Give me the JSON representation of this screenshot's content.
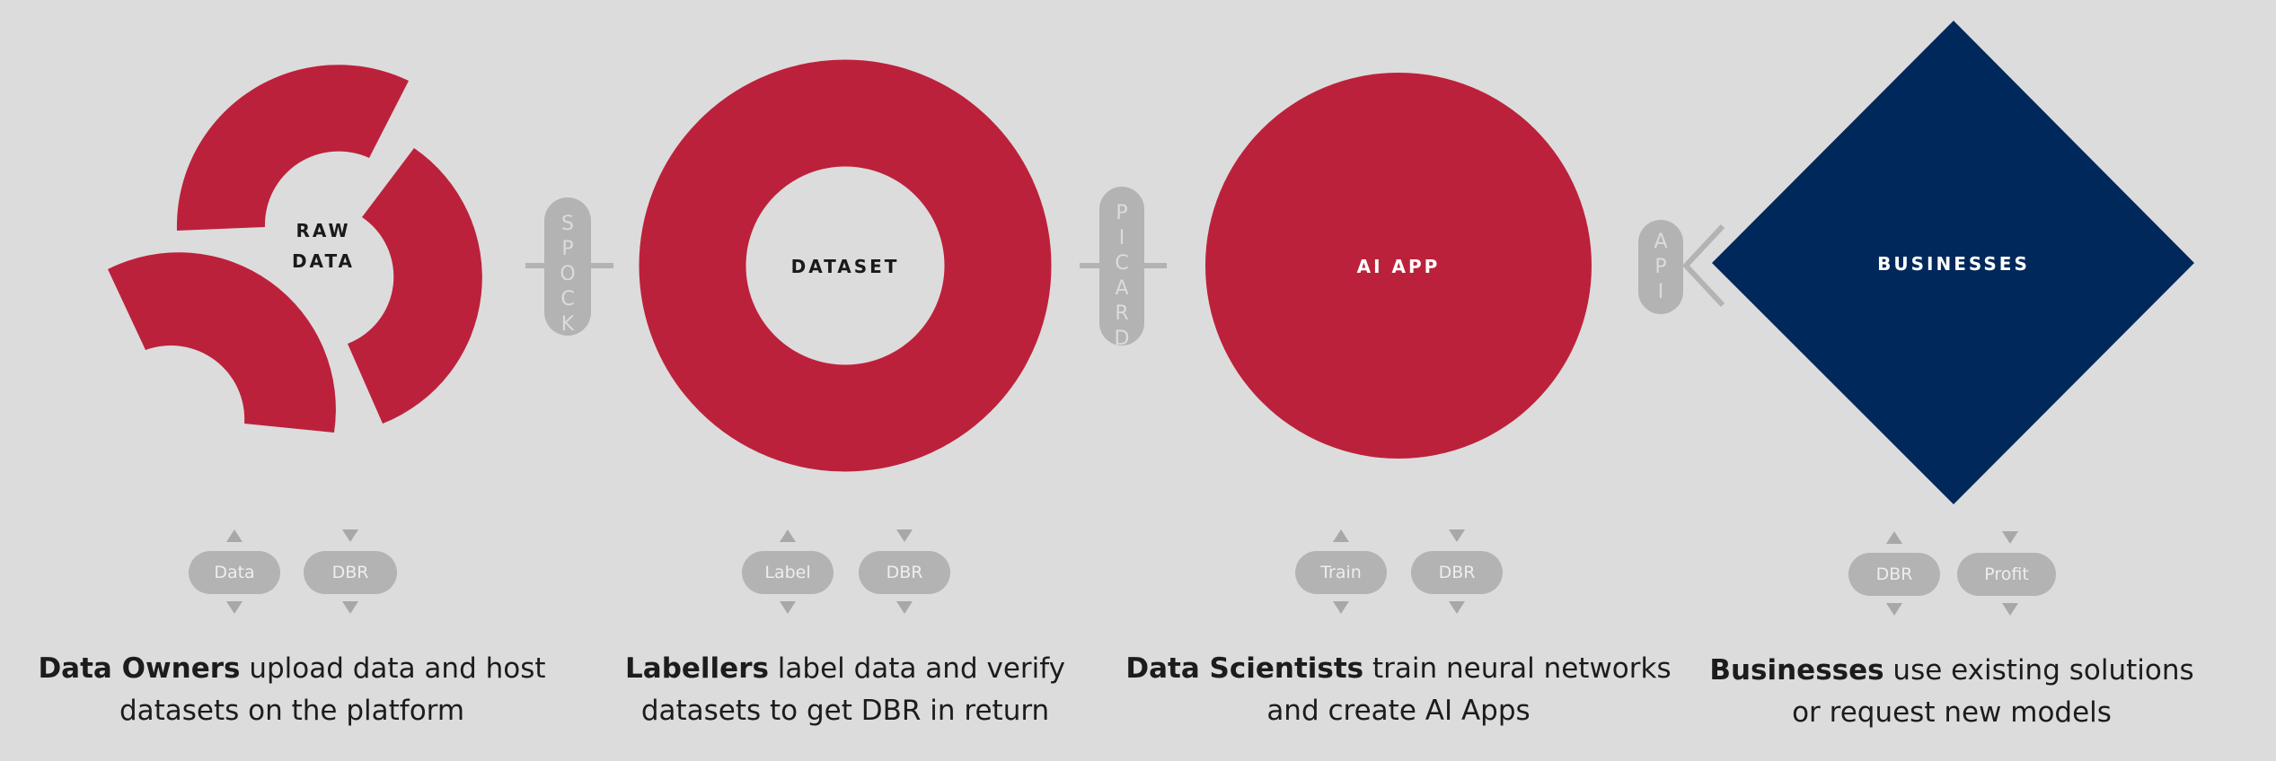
{
  "colors": {
    "background": "#dcdcdc",
    "red": "#bc213b",
    "navy": "#00285a",
    "grey": "#b3b3b3"
  },
  "nodes": {
    "raw_data": {
      "line1": "RAW",
      "line2": "DATA"
    },
    "dataset": {
      "label": "DATASET"
    },
    "ai_app": {
      "label": "AI APP"
    },
    "businesses": {
      "label": "BUSINESSES"
    }
  },
  "connectors": {
    "spock": [
      "S",
      "P",
      "O",
      "C",
      "K"
    ],
    "picard": [
      "P",
      "I",
      "C",
      "A",
      "R",
      "D"
    ],
    "api": [
      "A",
      "P",
      "I"
    ]
  },
  "tokens": {
    "data_owners": [
      "Data",
      "DBR"
    ],
    "labellers": [
      "Label",
      "DBR"
    ],
    "data_scientists": [
      "Train",
      "DBR"
    ],
    "businesses": [
      "DBR",
      "Profit"
    ]
  },
  "descriptions": {
    "data_owners": {
      "role": "Data Owners",
      "rest1": " upload data and host",
      "line2": "datasets on the platform"
    },
    "labellers": {
      "role": "Labellers",
      "rest1": " label data and verify",
      "line2": "datasets to get DBR in return"
    },
    "data_scientists": {
      "role": "Data Scientists",
      "rest1": " train neural networks",
      "line2": "and create AI Apps"
    },
    "businesses": {
      "role": "Businesses",
      "rest1": " use existing solutions",
      "line2": "or request new models"
    }
  }
}
